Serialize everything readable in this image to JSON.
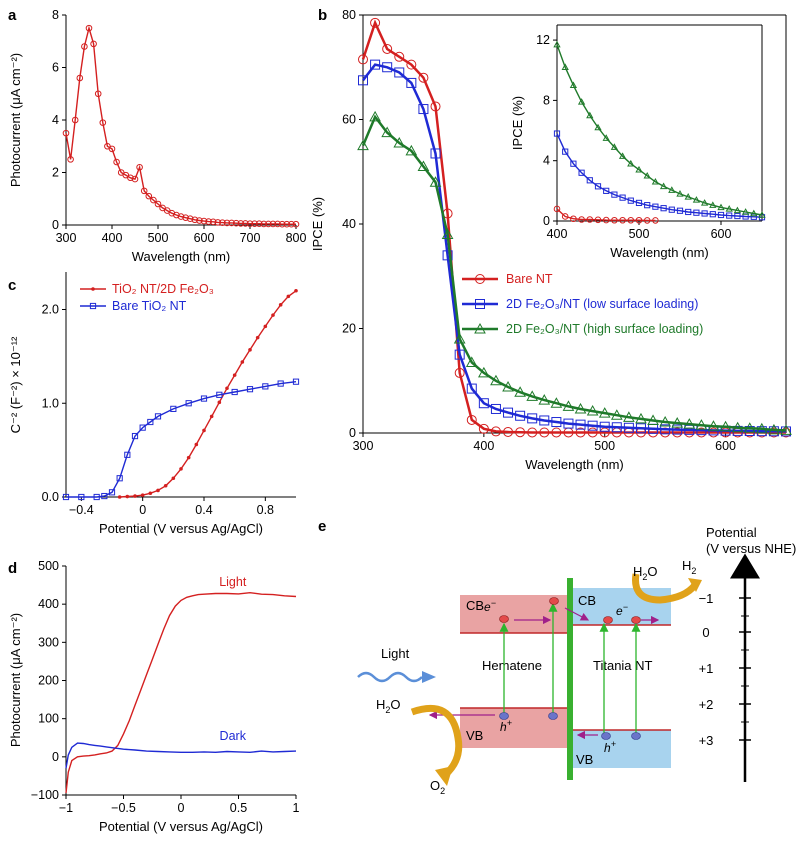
{
  "panels": {
    "a": {
      "letter": "a"
    },
    "b": {
      "letter": "b"
    },
    "c": {
      "letter": "c"
    },
    "d": {
      "letter": "d"
    },
    "e": {
      "letter": "e"
    }
  },
  "colors": {
    "red": "#d42020",
    "blue": "#1f2ad4",
    "green": "#1f7a2a",
    "black": "#000000"
  },
  "chart_data": [
    {
      "id": "a",
      "type": "line",
      "title": "",
      "xlabel": "Wavelength (nm)",
      "ylabel": "Photocurrent (μA cm⁻²)",
      "xlim": [
        300,
        800
      ],
      "ylim": [
        0,
        8
      ],
      "xticks": [
        300,
        400,
        500,
        600,
        700,
        800
      ],
      "yticks": [
        0,
        2,
        4,
        6,
        8
      ],
      "series": [
        {
          "name": "photocurrent",
          "color": "#d42020",
          "marker": "circle",
          "x": [
            300,
            310,
            320,
            330,
            340,
            350,
            360,
            370,
            380,
            390,
            400,
            410,
            420,
            430,
            440,
            450,
            460,
            470,
            480,
            490,
            500,
            510,
            520,
            530,
            540,
            550,
            560,
            570,
            580,
            590,
            600,
            610,
            620,
            630,
            640,
            650,
            660,
            670,
            680,
            690,
            700,
            710,
            720,
            730,
            740,
            750,
            760,
            770,
            780,
            790,
            800
          ],
          "y": [
            3.5,
            2.5,
            4.0,
            5.6,
            6.8,
            7.5,
            6.9,
            5.0,
            3.9,
            3.0,
            2.9,
            2.4,
            2.0,
            1.9,
            1.8,
            1.75,
            2.2,
            1.3,
            1.1,
            0.95,
            0.8,
            0.65,
            0.55,
            0.45,
            0.38,
            0.32,
            0.28,
            0.24,
            0.2,
            0.17,
            0.15,
            0.13,
            0.12,
            0.1,
            0.09,
            0.08,
            0.08,
            0.07,
            0.06,
            0.06,
            0.05,
            0.05,
            0.05,
            0.04,
            0.04,
            0.04,
            0.04,
            0.03,
            0.03,
            0.03,
            0.03
          ]
        }
      ]
    },
    {
      "id": "b",
      "type": "line",
      "title": "",
      "xlabel": "Wavelength (nm)",
      "ylabel": "IPCE (%)",
      "xlim": [
        300,
        650
      ],
      "ylim": [
        0,
        80
      ],
      "xticks": [
        300,
        400,
        500,
        600
      ],
      "yticks": [
        0,
        20,
        40,
        60,
        80
      ],
      "legend": [
        "Bare NT",
        "2D Fe₂O₃/NT (low surface loading)",
        "2D Fe₂O₃/NT (high surface loading)"
      ],
      "series": [
        {
          "name": "Bare NT",
          "color": "#d42020",
          "marker": "circle",
          "x": [
            300,
            310,
            320,
            330,
            340,
            350,
            360,
            370,
            380,
            390,
            400,
            410,
            420,
            430,
            440,
            450,
            460,
            470,
            480,
            490,
            500,
            510,
            520,
            530,
            540,
            550,
            560,
            570,
            580,
            590,
            600,
            610,
            620,
            630,
            640,
            650
          ],
          "y": [
            71.5,
            78.5,
            73.5,
            72.0,
            70.5,
            68.0,
            62.5,
            42.0,
            11.5,
            2.5,
            0.8,
            0.3,
            0.2,
            0.15,
            0.1,
            0.1,
            0.1,
            0.1,
            0.1,
            0.1,
            0.1,
            0.1,
            0.1,
            0.1,
            0.1,
            0.1,
            0.1,
            0.1,
            0.1,
            0.1,
            0.1,
            0.1,
            0.1,
            0.1,
            0.1,
            0.1
          ]
        },
        {
          "name": "2D Fe₂O₃/NT (low surface loading)",
          "color": "#1f2ad4",
          "marker": "square",
          "x": [
            300,
            310,
            320,
            330,
            340,
            350,
            360,
            370,
            380,
            390,
            400,
            410,
            420,
            430,
            440,
            450,
            460,
            470,
            480,
            490,
            500,
            510,
            520,
            530,
            540,
            550,
            560,
            570,
            580,
            590,
            600,
            610,
            620,
            630,
            640,
            650
          ],
          "y": [
            67.5,
            70.5,
            70.0,
            69.0,
            67.0,
            62.0,
            53.5,
            34.0,
            15.0,
            8.5,
            5.7,
            4.6,
            3.9,
            3.3,
            2.8,
            2.4,
            2.1,
            1.8,
            1.6,
            1.4,
            1.2,
            1.1,
            1.0,
            0.9,
            0.8,
            0.7,
            0.65,
            0.6,
            0.55,
            0.5,
            0.45,
            0.4,
            0.38,
            0.35,
            0.33,
            0.3
          ]
        },
        {
          "name": "2D Fe₂O₃/NT (high surface loading)",
          "color": "#1f7a2a",
          "marker": "triangle",
          "x": [
            300,
            310,
            320,
            330,
            340,
            350,
            360,
            370,
            380,
            390,
            400,
            410,
            420,
            430,
            440,
            450,
            460,
            470,
            480,
            490,
            500,
            510,
            520,
            530,
            540,
            550,
            560,
            570,
            580,
            590,
            600,
            610,
            620,
            630,
            640,
            650
          ],
          "y": [
            55.0,
            60.5,
            57.5,
            55.5,
            54.0,
            51.0,
            48.0,
            38.0,
            18.0,
            13.5,
            11.5,
            10.0,
            8.8,
            7.8,
            7.0,
            6.3,
            5.7,
            5.1,
            4.6,
            4.2,
            3.8,
            3.4,
            3.0,
            2.7,
            2.4,
            2.1,
            1.9,
            1.7,
            1.5,
            1.3,
            1.2,
            1.0,
            0.9,
            0.8,
            0.6,
            0.5
          ]
        }
      ]
    },
    {
      "id": "b-inset",
      "type": "line",
      "title": "",
      "xlabel": "Wavelength (nm)",
      "ylabel": "IPCE (%)",
      "xlim": [
        400,
        650
      ],
      "ylim": [
        0,
        13
      ],
      "xticks": [
        400,
        500,
        600
      ],
      "yticks": [
        0,
        4,
        8,
        12
      ],
      "series": [
        {
          "name": "Bare NT",
          "color": "#d42020",
          "marker": "circle",
          "x": [
            400,
            410,
            420,
            430,
            440,
            450,
            460,
            470,
            480,
            490,
            500,
            510,
            520
          ],
          "y": [
            0.8,
            0.3,
            0.15,
            0.1,
            0.1,
            0.08,
            0.06,
            0.05,
            0.05,
            0.05,
            0.05,
            0.04,
            0.04
          ]
        },
        {
          "name": "2D Fe₂O₃/NT (low surface loading)",
          "color": "#1f2ad4",
          "marker": "square",
          "x": [
            400,
            410,
            420,
            430,
            440,
            450,
            460,
            470,
            480,
            490,
            500,
            510,
            520,
            530,
            540,
            550,
            560,
            570,
            580,
            590,
            600,
            610,
            620,
            630,
            640,
            650
          ],
          "y": [
            5.8,
            4.6,
            3.8,
            3.2,
            2.7,
            2.3,
            2.0,
            1.75,
            1.55,
            1.35,
            1.2,
            1.05,
            0.95,
            0.85,
            0.75,
            0.68,
            0.6,
            0.55,
            0.5,
            0.45,
            0.4,
            0.36,
            0.33,
            0.3,
            0.28,
            0.25
          ]
        },
        {
          "name": "2D Fe₂O₃/NT (high surface loading)",
          "color": "#1f7a2a",
          "marker": "triangle",
          "x": [
            400,
            410,
            420,
            430,
            440,
            450,
            460,
            470,
            480,
            490,
            500,
            510,
            520,
            530,
            540,
            550,
            560,
            570,
            580,
            590,
            600,
            610,
            620,
            630,
            640,
            650
          ],
          "y": [
            11.7,
            10.2,
            9.0,
            7.9,
            7.0,
            6.2,
            5.5,
            4.9,
            4.3,
            3.8,
            3.4,
            3.0,
            2.6,
            2.3,
            2.05,
            1.8,
            1.6,
            1.4,
            1.2,
            1.05,
            0.9,
            0.8,
            0.7,
            0.6,
            0.5,
            0.4
          ]
        }
      ]
    },
    {
      "id": "c",
      "type": "line",
      "title": "",
      "xlabel": "Potential (V versus Ag/AgCl)",
      "ylabel": "C⁻² (F⁻²) × 10⁻¹²",
      "xlim": [
        -0.5,
        1.0
      ],
      "ylim": [
        0,
        2.4
      ],
      "xticks": [
        -0.4,
        0,
        0.4,
        0.8
      ],
      "xticklabels": [
        "−0.4",
        "0",
        "0.4",
        "0.8"
      ],
      "yticks": [
        0,
        1.0,
        2.0
      ],
      "yticklabels": [
        "0.0",
        "1.0",
        "2.0"
      ],
      "legend": [
        "TiO₂ NT/2D Fe₂O₃",
        "Bare TiO₂ NT"
      ],
      "series": [
        {
          "name": "TiO₂ NT/2D Fe₂O₃",
          "color": "#d42020",
          "marker": "dot",
          "x": [
            -0.15,
            -0.1,
            -0.05,
            0,
            0.05,
            0.1,
            0.15,
            0.2,
            0.25,
            0.3,
            0.35,
            0.4,
            0.45,
            0.5,
            0.55,
            0.6,
            0.65,
            0.7,
            0.75,
            0.8,
            0.85,
            0.9,
            0.95,
            1.0
          ],
          "y": [
            0.0,
            0.005,
            0.01,
            0.02,
            0.04,
            0.07,
            0.12,
            0.2,
            0.3,
            0.42,
            0.56,
            0.71,
            0.86,
            1.01,
            1.16,
            1.3,
            1.44,
            1.57,
            1.7,
            1.82,
            1.94,
            2.05,
            2.14,
            2.2
          ]
        },
        {
          "name": "Bare TiO₂ NT",
          "color": "#1f2ad4",
          "marker": "square",
          "x": [
            -0.5,
            -0.4,
            -0.3,
            -0.25,
            -0.2,
            -0.15,
            -0.1,
            -0.05,
            0,
            0.05,
            0.1,
            0.2,
            0.3,
            0.4,
            0.5,
            0.6,
            0.7,
            0.8,
            0.9,
            1.0
          ],
          "y": [
            0.0,
            0.0,
            0.0,
            0.01,
            0.05,
            0.2,
            0.45,
            0.65,
            0.74,
            0.8,
            0.86,
            0.94,
            1.0,
            1.05,
            1.09,
            1.12,
            1.15,
            1.18,
            1.21,
            1.23
          ]
        }
      ]
    },
    {
      "id": "d",
      "type": "line",
      "title": "",
      "xlabel": "Potential (V versus Ag/AgCl)",
      "ylabel": "Photocurrent (μA cm⁻²)",
      "xlim": [
        -1,
        1
      ],
      "ylim": [
        -100,
        500
      ],
      "xticks": [
        -1,
        -0.5,
        0,
        0.5,
        1
      ],
      "xticklabels": [
        "−1",
        "−0.5",
        "0",
        "0.5",
        "1"
      ],
      "yticks": [
        -100,
        0,
        100,
        200,
        300,
        400,
        500
      ],
      "yticklabels": [
        "−100",
        "0",
        "100",
        "200",
        "300",
        "400",
        "500"
      ],
      "annotations": [
        "Light",
        "Dark"
      ],
      "series": [
        {
          "name": "Light",
          "color": "#d42020",
          "x": [
            -1.0,
            -0.98,
            -0.95,
            -0.9,
            -0.85,
            -0.8,
            -0.75,
            -0.7,
            -0.65,
            -0.6,
            -0.55,
            -0.5,
            -0.45,
            -0.4,
            -0.35,
            -0.3,
            -0.25,
            -0.2,
            -0.15,
            -0.1,
            -0.05,
            0,
            0.05,
            0.1,
            0.15,
            0.2,
            0.3,
            0.4,
            0.5,
            0.6,
            0.7,
            0.8,
            0.9,
            1.0
          ],
          "y": [
            -95,
            -40,
            -10,
            0,
            2,
            3,
            5,
            8,
            10,
            15,
            30,
            60,
            95,
            135,
            175,
            215,
            255,
            295,
            335,
            370,
            395,
            410,
            418,
            422,
            425,
            426,
            428,
            428,
            427,
            430,
            426,
            425,
            422,
            420
          ]
        },
        {
          "name": "Dark",
          "color": "#1f2ad4",
          "x": [
            -1.0,
            -0.98,
            -0.95,
            -0.9,
            -0.85,
            -0.8,
            -0.75,
            -0.7,
            -0.65,
            -0.6,
            -0.55,
            -0.5,
            -0.4,
            -0.3,
            -0.2,
            -0.1,
            0,
            0.1,
            0.2,
            0.3,
            0.4,
            0.5,
            0.6,
            0.7,
            0.8,
            0.9,
            1.0
          ],
          "y": [
            -30,
            5,
            25,
            36,
            35,
            32,
            30,
            28,
            26,
            24,
            22,
            20,
            18,
            15,
            14,
            13,
            12,
            12,
            13,
            12,
            14,
            13,
            12,
            15,
            13,
            14,
            15
          ]
        }
      ]
    }
  ],
  "panel_e": {
    "cb_label": "CB",
    "vb_label": "VB",
    "hematene_label": "Hematene",
    "titania_label": "Titania NT",
    "light_label": "Light",
    "electron_symbol": "e",
    "hole_symbol": "h",
    "h2o_prefix": "H",
    "h2o_suffix": "O",
    "o2_prefix": "O",
    "h2_prefix": "H",
    "sub_two": "2",
    "axis_title": "Potential",
    "axis_units": "(V versus NHE)",
    "ticks": [
      "−1",
      "0",
      "+1",
      "+2",
      "+3"
    ]
  }
}
